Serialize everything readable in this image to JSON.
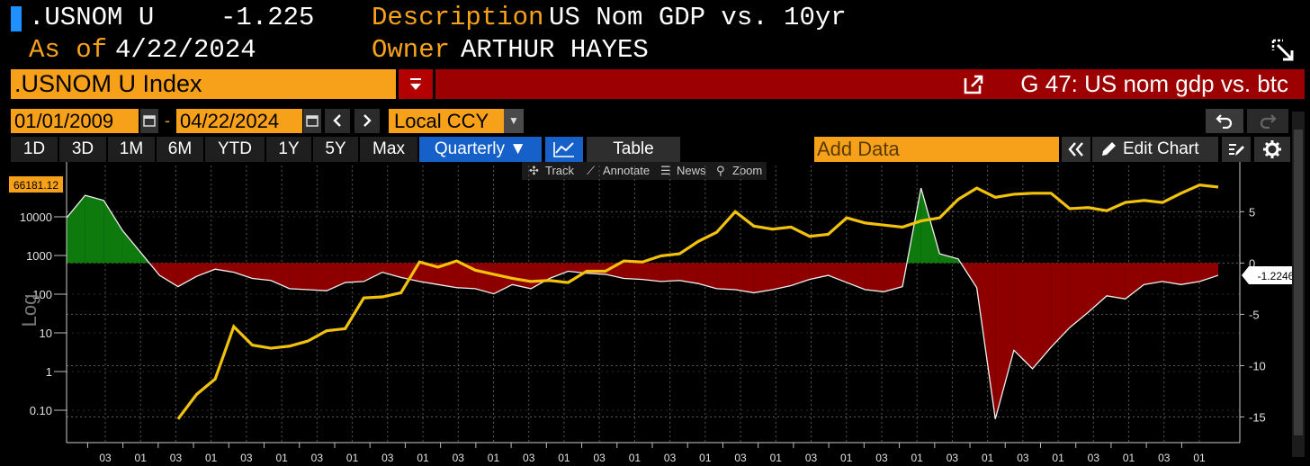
{
  "header": {
    "ticker": ".USNOM U",
    "last_value": "-1.225",
    "description_label": "Description",
    "description": "US Nom GDP vs. 10yr",
    "asof_label": "As of",
    "asof_date": "4/22/2024",
    "owner_label": "Owner",
    "owner": "ARTHUR HAYES"
  },
  "security": {
    "input_value": ".USNOM U Index",
    "chart_title": "G 47: US nom gdp vs. btc"
  },
  "range": {
    "start_date": "01/01/2009",
    "separator": "-",
    "end_date": "04/22/2024",
    "currency": "Local CCY"
  },
  "toolbar": {
    "periods": [
      "1D",
      "3D",
      "1M",
      "6M",
      "YTD",
      "1Y",
      "5Y",
      "Max"
    ],
    "frequency": "Quarterly ▼",
    "table_label": "Table",
    "add_data_placeholder": "Add Data",
    "edit_chart_label": "Edit Chart"
  },
  "plot_tools": {
    "track": "Track",
    "annotate": "Annotate",
    "news": "News",
    "zoom": "Zoom"
  },
  "colors": {
    "accent": "#f7a01a",
    "header_bar": "#9c0000",
    "selected": "#1560c9",
    "yellow_line": "#f2c20d",
    "positive_fill": "#0e7a0e",
    "negative_fill": "#8e0000"
  },
  "chart_data": {
    "type": "line",
    "ylabel_left": "Log",
    "left_axis": {
      "scale": "log",
      "ticks": [
        "0.10",
        "1",
        "10",
        "100",
        "1000",
        "10000"
      ],
      "top_label": "66181.12"
    },
    "right_axis": {
      "ticks": [
        5,
        0,
        -5,
        -10,
        -15
      ],
      "ylim": [
        -17.5,
        9.5
      ],
      "last_label": "-1.2246"
    },
    "x_tick_labels": [
      "03",
      "01",
      "03",
      "01",
      "03",
      "01",
      "03",
      "01",
      "03",
      "01",
      "03",
      "01",
      "03",
      "01",
      "03",
      "01",
      "03",
      "01",
      "03",
      "01",
      "03",
      "01",
      "03",
      "01",
      "03",
      "01",
      "03",
      "01",
      "03",
      "01",
      "03",
      "01"
    ],
    "series": [
      {
        "values": [
          4.4,
          6.6,
          6.1,
          3.2,
          1.0,
          -1.2,
          -2.3,
          -1.3,
          -0.6,
          -0.9,
          -1.5,
          -1.7,
          -2.5,
          -2.6,
          -2.7,
          -1.9,
          -1.8,
          -0.9,
          -1.4,
          -1.8,
          -2.1,
          -2.4,
          -2.5,
          -3.0,
          -2.1,
          -2.5,
          -1.5,
          -0.8,
          -1.0,
          -1.1,
          -1.5,
          -1.6,
          -1.8,
          -1.7,
          -2.0,
          -2.5,
          -2.6,
          -2.9,
          -2.6,
          -2.2,
          -1.6,
          -1.2,
          -1.9,
          -2.6,
          -2.8,
          -2.3,
          7.3,
          0.9,
          0.4,
          -2.4,
          -15.2,
          -8.5,
          -10.3,
          -8.2,
          -6.3,
          -4.8,
          -3.2,
          -3.5,
          -2.1,
          -1.8,
          -2.1,
          -1.8,
          -1.2
        ]
      },
      {
        "values": [
          null,
          null,
          null,
          null,
          null,
          null,
          -15.2,
          -12.8,
          -11.3,
          -6.2,
          -8.0,
          -8.3,
          -8.1,
          -7.6,
          -6.6,
          -6.4,
          -3.4,
          -3.3,
          -2.9,
          0.1,
          -0.4,
          0.2,
          -0.7,
          -1.1,
          -1.5,
          -1.8,
          -1.7,
          -1.9,
          -0.8,
          -0.8,
          0.2,
          0.1,
          0.7,
          0.9,
          2.1,
          3.0,
          5.0,
          3.6,
          3.3,
          3.5,
          2.6,
          2.8,
          4.4,
          3.9,
          3.7,
          3.5,
          4.1,
          4.4,
          6.2,
          7.3,
          6.4,
          6.7,
          6.8,
          6.8,
          5.3,
          5.4,
          5.1,
          5.9,
          6.1,
          5.9,
          6.8,
          7.6,
          7.4
        ]
      }
    ]
  }
}
